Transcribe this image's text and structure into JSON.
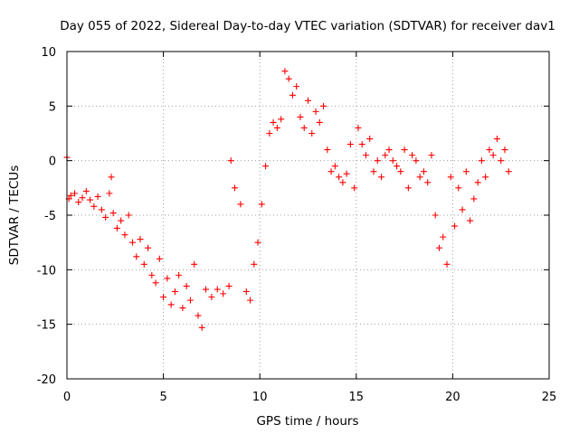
{
  "chart_data": {
    "type": "scatter",
    "title": "Day 055 of 2022, Sidereal Day-to-day VTEC variation (SDTVAR) for receiver dav1",
    "xlabel": "GPS time / hours",
    "ylabel": "SDTVAR / TECUs",
    "xlim": [
      0,
      25
    ],
    "ylim": [
      -20,
      10
    ],
    "xticks": [
      0,
      5,
      10,
      15,
      20,
      25
    ],
    "yticks": [
      -20,
      -15,
      -10,
      -5,
      0,
      5,
      10
    ],
    "xtick_labels": [
      "0",
      "5",
      "10",
      "15",
      "20",
      "25"
    ],
    "ytick_labels": [
      "-20",
      "-15",
      "-10",
      "-5",
      "0",
      "5",
      "10"
    ],
    "grid": true,
    "marker": "+",
    "color": "#ff0000",
    "series": [
      {
        "name": "dav1",
        "x": [
          0.0,
          0.1,
          0.2,
          0.4,
          0.6,
          0.8,
          1.0,
          1.2,
          1.4,
          1.6,
          1.8,
          2.0,
          2.2,
          2.3,
          2.4,
          2.6,
          2.8,
          3.0,
          3.2,
          3.4,
          3.6,
          3.8,
          4.0,
          4.2,
          4.4,
          4.6,
          4.8,
          5.0,
          5.2,
          5.4,
          5.6,
          5.8,
          6.0,
          6.2,
          6.4,
          6.6,
          6.8,
          7.0,
          7.2,
          7.5,
          7.8,
          8.1,
          8.4,
          8.5,
          8.7,
          9.0,
          9.3,
          9.5,
          9.7,
          9.9,
          10.1,
          10.3,
          10.5,
          10.7,
          10.9,
          11.1,
          11.3,
          11.5,
          11.7,
          11.9,
          12.1,
          12.3,
          12.5,
          12.7,
          12.9,
          13.1,
          13.3,
          13.5,
          13.7,
          13.9,
          14.1,
          14.3,
          14.5,
          14.7,
          14.9,
          15.1,
          15.3,
          15.5,
          15.7,
          15.9,
          16.1,
          16.3,
          16.5,
          16.7,
          16.9,
          17.1,
          17.3,
          17.5,
          17.7,
          17.9,
          18.1,
          18.3,
          18.5,
          18.7,
          18.9,
          19.1,
          19.3,
          19.5,
          19.7,
          19.9,
          20.1,
          20.3,
          20.5,
          20.7,
          20.9,
          21.1,
          21.3,
          21.5,
          21.7,
          21.9,
          22.1,
          22.3,
          22.5,
          22.7,
          22.9
        ],
        "y": [
          0.3,
          -3.5,
          -3.2,
          -3.0,
          -3.8,
          -3.4,
          -2.8,
          -3.6,
          -4.2,
          -3.3,
          -4.5,
          -5.2,
          -3.0,
          -1.5,
          -4.8,
          -6.2,
          -5.5,
          -6.8,
          -5.0,
          -7.5,
          -8.8,
          -7.2,
          -9.5,
          -8.0,
          -10.5,
          -11.2,
          -9.0,
          -12.5,
          -10.8,
          -13.2,
          -12.0,
          -10.5,
          -13.5,
          -11.5,
          -12.8,
          -9.5,
          -14.2,
          -15.3,
          -11.8,
          -12.5,
          -11.8,
          -12.2,
          -11.5,
          0.0,
          -2.5,
          -4.0,
          -12.0,
          -12.8,
          -9.5,
          -7.5,
          -4.0,
          -0.5,
          2.5,
          3.5,
          3.0,
          3.8,
          8.2,
          7.5,
          6.0,
          6.8,
          4.0,
          3.0,
          5.5,
          2.5,
          4.5,
          3.5,
          5.0,
          1.0,
          -1.0,
          -0.5,
          -1.5,
          -2.0,
          -1.2,
          1.5,
          -2.5,
          3.0,
          1.5,
          0.5,
          2.0,
          -1.0,
          0.0,
          -1.5,
          0.5,
          1.0,
          0.0,
          -0.5,
          -1.0,
          1.0,
          -2.5,
          0.5,
          0.0,
          -1.5,
          -1.0,
          -2.0,
          0.5,
          -5.0,
          -8.0,
          -7.0,
          -9.5,
          -1.5,
          -6.0,
          -2.5,
          -4.5,
          -1.0,
          -5.5,
          -3.5,
          -2.0,
          0.0,
          -1.5,
          1.0,
          0.5,
          2.0,
          0.0,
          1.0,
          -1.0
        ]
      }
    ]
  }
}
